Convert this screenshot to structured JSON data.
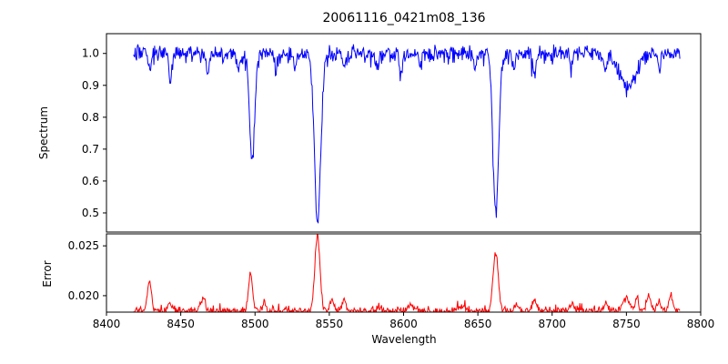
{
  "window": {
    "background": "#ffffff"
  },
  "chart_data": {
    "type": "line",
    "title": "20061116_0421m08_136",
    "xlabel": "Wavelength",
    "legend": "none",
    "grid": false,
    "x_axis": {
      "min": 8400,
      "max": 8800,
      "data_min": 8418,
      "data_max": 8786,
      "ticks": [
        {
          "v": 8400,
          "label": "8400"
        },
        {
          "v": 8450,
          "label": "8450"
        },
        {
          "v": 8500,
          "label": "8500"
        },
        {
          "v": 8550,
          "label": "8550"
        },
        {
          "v": 8600,
          "label": "8600"
        },
        {
          "v": 8650,
          "label": "8650"
        },
        {
          "v": 8700,
          "label": "8700"
        },
        {
          "v": 8750,
          "label": "8750"
        },
        {
          "v": 8800,
          "label": "8800"
        }
      ]
    },
    "seed": 7,
    "n_points": 820,
    "subplots": [
      {
        "name": "spectrum",
        "ylabel": "Spectrum",
        "color": "#0000ff",
        "ylim": [
          0.44,
          1.062
        ],
        "yticks": [
          {
            "v": 0.5,
            "label": "0.5"
          },
          {
            "v": 0.6,
            "label": "0.6"
          },
          {
            "v": 0.7,
            "label": "0.7"
          },
          {
            "v": 0.8,
            "label": "0.8"
          },
          {
            "v": 0.9,
            "label": "0.9"
          },
          {
            "v": 1.0,
            "label": "1.0"
          }
        ],
        "baseline": 1.0,
        "noise_std": 0.012,
        "absorption_lines": [
          [
            8429,
            0.05,
            1.0
          ],
          [
            8443,
            0.08,
            1.1
          ],
          [
            8468,
            0.06,
            1.0
          ],
          [
            8489,
            0.04,
            1.0
          ],
          [
            8498.0,
            0.33,
            1.7
          ],
          [
            8514,
            0.05,
            1.0
          ],
          [
            8527,
            0.04,
            1.0
          ],
          [
            8542.1,
            0.53,
            2.1
          ],
          [
            8560,
            0.04,
            1.0
          ],
          [
            8582,
            0.05,
            1.0
          ],
          [
            8598,
            0.06,
            1.1
          ],
          [
            8611,
            0.04,
            1.0
          ],
          [
            8648,
            0.05,
            1.0
          ],
          [
            8662.1,
            0.5,
            1.9
          ],
          [
            8674,
            0.04,
            1.0
          ],
          [
            8688,
            0.06,
            1.1
          ],
          [
            8713,
            0.04,
            1.0
          ],
          [
            8736,
            0.05,
            1.2
          ],
          [
            8751,
            0.1,
            5.0
          ],
          [
            8772,
            0.05,
            1.0
          ]
        ]
      },
      {
        "name": "error",
        "ylabel": "Error",
        "color": "#ff0000",
        "ylim": [
          0.01835,
          0.0262
        ],
        "yticks": [
          {
            "v": 0.02,
            "label": "0.020"
          },
          {
            "v": 0.025,
            "label": "0.025"
          }
        ],
        "baseline": 0.0185,
        "noise_std": 0.00018,
        "peaks": [
          [
            8429,
            0.003,
            1.3
          ],
          [
            8443,
            0.0008,
            1.2
          ],
          [
            8465,
            0.0013,
            1.5
          ],
          [
            8497,
            0.0038,
            1.4
          ],
          [
            8506,
            0.0008,
            1.0
          ],
          [
            8542,
            0.0076,
            1.7
          ],
          [
            8552,
            0.001,
            1.2
          ],
          [
            8560,
            0.0009,
            1.5
          ],
          [
            8583,
            0.0006,
            1.2
          ],
          [
            8605,
            0.0006,
            2.0
          ],
          [
            8640,
            0.0005,
            2.0
          ],
          [
            8662,
            0.0058,
            1.7
          ],
          [
            8676,
            0.0007,
            1.2
          ],
          [
            8688,
            0.0009,
            1.5
          ],
          [
            8713,
            0.0006,
            1.5
          ],
          [
            8736,
            0.0007,
            1.5
          ],
          [
            8750,
            0.0013,
            2.0
          ],
          [
            8757,
            0.001,
            1.2
          ],
          [
            8765,
            0.0016,
            1.3
          ],
          [
            8772,
            0.001,
            1.0
          ],
          [
            8780,
            0.0016,
            1.2
          ]
        ]
      }
    ]
  }
}
